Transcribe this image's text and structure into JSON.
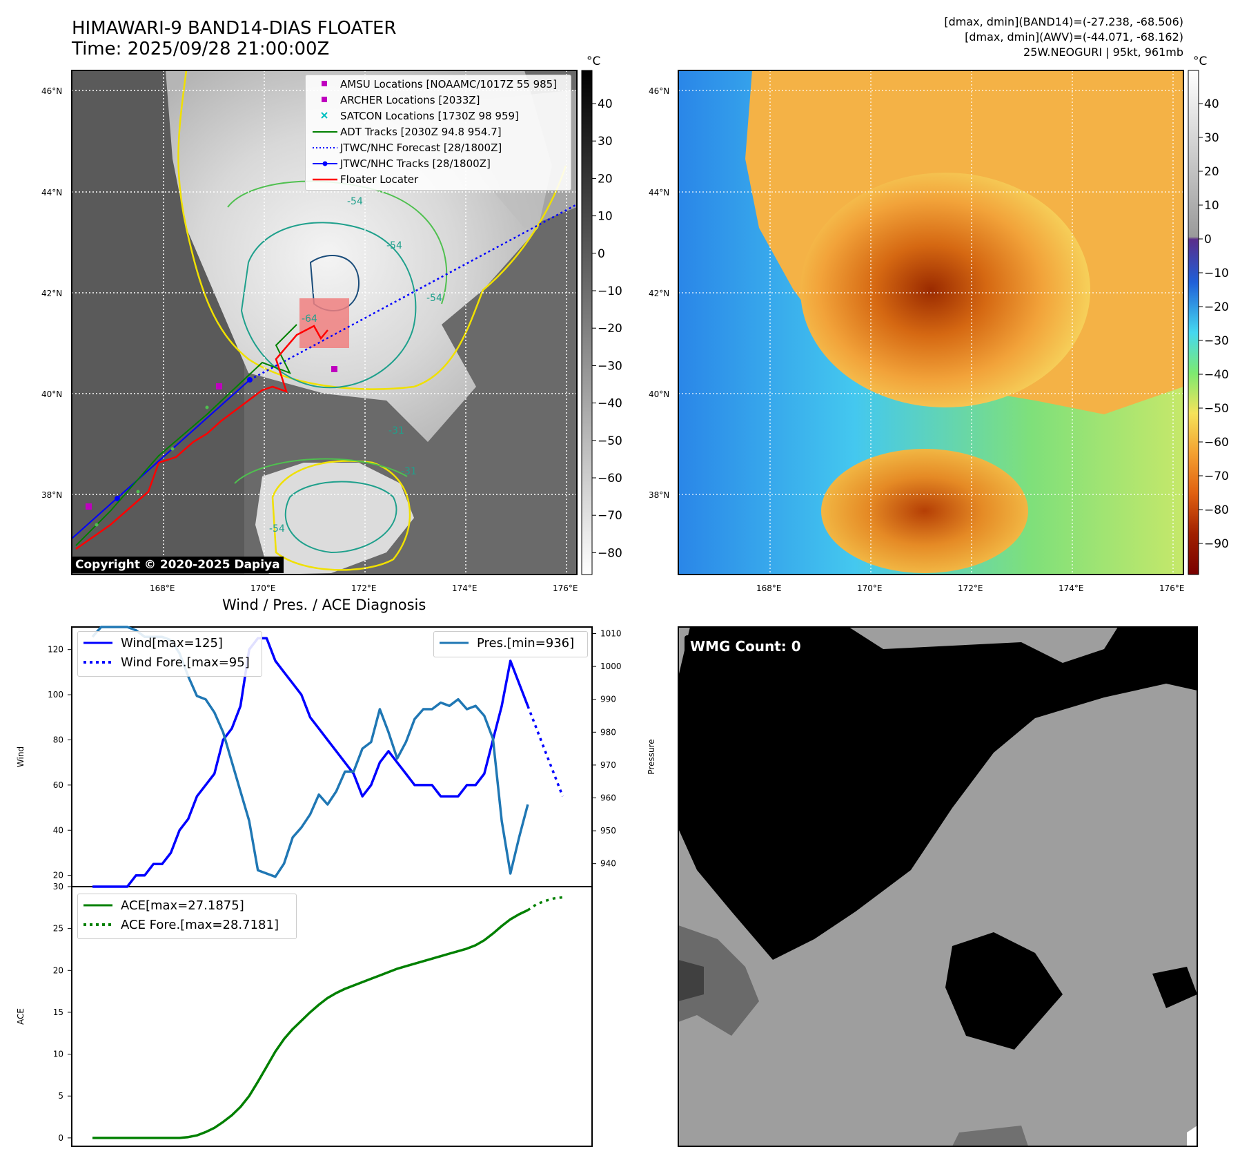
{
  "header": {
    "title_line1": "HIMAWARI-9 BAND14-DIAS FLOATER",
    "title_line2": "Time: 2025/09/28 21:00:00Z",
    "info_line1": "[dmax, dmin](BAND14)=(-27.238, -68.506)",
    "info_line2": "[dmax, dmin](AWV)=(-44.071, -68.162)",
    "info_line3": "25W.NEOGURI | 95kt, 961mb"
  },
  "map_axes": {
    "lat_labels": [
      "46°N",
      "44°N",
      "42°N",
      "40°N",
      "38°N"
    ],
    "lon_labels": [
      "168°E",
      "170°E",
      "172°E",
      "174°E",
      "176°E"
    ],
    "colorbar_unit": "°C",
    "gray_cbar_ticks": [
      "40",
      "30",
      "20",
      "10",
      "0",
      "−10",
      "−20",
      "−30",
      "−40",
      "−50",
      "−60",
      "−70",
      "−80"
    ],
    "color_cbar_ticks": [
      "40",
      "30",
      "20",
      "10",
      "0",
      "−10",
      "−20",
      "−30",
      "−40",
      "−50",
      "−60",
      "−70",
      "−80",
      "−90"
    ],
    "contour_labels": [
      "-54",
      "-54",
      "-54",
      "-64",
      "-31",
      "-31",
      "-54"
    ]
  },
  "legend_map": {
    "items": [
      {
        "label": "AMSU Locations [NOAAMC/1017Z 55 985]",
        "color": "#bf00bf",
        "style": "square"
      },
      {
        "label": "ARCHER Locations [2033Z]",
        "color": "#bf00bf",
        "style": "square"
      },
      {
        "label": "SATCON Locations [1730Z 98 959]",
        "color": "#00bfbf",
        "style": "x"
      },
      {
        "label": "ADT Tracks [2030Z 94.8 954.7]",
        "color": "#008000",
        "style": "line"
      },
      {
        "label": "JTWC/NHC Forecast [28/1800Z]",
        "color": "#0000ff",
        "style": "dotted"
      },
      {
        "label": "JTWC/NHC Tracks [28/1800Z]",
        "color": "#0000ff",
        "style": "line-dot"
      },
      {
        "label": "Floater Locater",
        "color": "#ff0000",
        "style": "line"
      }
    ]
  },
  "copyright": "Copyright © 2020-2025 Dapiya",
  "wmg_label": "WMG Count: 0",
  "chart_data": [
    {
      "type": "line",
      "title": "Wind / Pres. / ACE Diagnosis",
      "ylabel": "Wind",
      "ylabel_right": "Pressure",
      "ylim": [
        15,
        130
      ],
      "ylim_right": [
        933,
        1012
      ],
      "yticks": [
        20,
        40,
        60,
        80,
        100,
        120
      ],
      "yticks_right": [
        940,
        950,
        960,
        970,
        980,
        990,
        1000,
        1010
      ],
      "x": [
        0,
        1,
        2,
        3,
        4,
        5,
        6,
        7,
        8,
        9,
        10,
        11,
        12,
        13,
        14,
        15,
        16,
        17,
        18,
        19,
        20,
        21,
        22,
        23,
        24,
        25,
        26,
        27,
        28,
        29,
        30,
        31,
        32,
        33,
        34,
        35,
        36,
        37,
        38,
        39,
        40,
        41,
        42,
        43,
        44,
        45,
        46,
        47,
        48,
        49,
        50
      ],
      "series": [
        {
          "name": "Wind[max=125]",
          "color": "#0000ff",
          "style": "solid",
          "values": [
            15,
            15,
            15,
            15,
            15,
            20,
            20,
            25,
            25,
            30,
            40,
            45,
            55,
            60,
            65,
            80,
            85,
            95,
            120,
            125,
            125,
            115,
            110,
            105,
            100,
            90,
            85,
            80,
            75,
            70,
            65,
            55,
            60,
            70,
            75,
            70,
            65,
            60,
            60,
            60,
            55,
            55,
            55,
            60,
            60,
            65,
            80,
            95,
            115,
            105,
            95
          ]
        },
        {
          "name": "Wind Fore.[max=95]",
          "color": "#0000ff",
          "style": "dotted",
          "x": [
            50,
            51,
            52,
            53,
            54
          ],
          "values": [
            95,
            85,
            75,
            65,
            55
          ]
        },
        {
          "name": "Pres.[min=936]",
          "color": "#1f77b4",
          "style": "solid",
          "axis": "right",
          "values": [
            1009,
            1012,
            1012,
            1012,
            1012,
            1011,
            1009,
            1009,
            1009,
            1008,
            1004,
            997,
            991,
            990,
            986,
            980,
            971,
            962,
            953,
            938,
            937,
            936,
            940,
            948,
            951,
            955,
            961,
            958,
            962,
            968,
            968,
            975,
            977,
            987,
            980,
            972,
            977,
            984,
            987,
            987,
            989,
            988,
            990,
            987,
            988,
            985,
            978,
            953,
            937,
            948,
            958
          ]
        }
      ]
    },
    {
      "type": "line",
      "ylabel": "ACE",
      "ylim": [
        -1,
        30
      ],
      "yticks": [
        0,
        5,
        10,
        15,
        20,
        25,
        30
      ],
      "x": [
        0,
        1,
        2,
        3,
        4,
        5,
        6,
        7,
        8,
        9,
        10,
        11,
        12,
        13,
        14,
        15,
        16,
        17,
        18,
        19,
        20,
        21,
        22,
        23,
        24,
        25,
        26,
        27,
        28,
        29,
        30,
        31,
        32,
        33,
        34,
        35,
        36,
        37,
        38,
        39,
        40,
        41,
        42,
        43,
        44,
        45,
        46,
        47,
        48,
        49,
        50
      ],
      "series": [
        {
          "name": "ACE[max=27.1875]",
          "color": "#008000",
          "style": "solid",
          "values": [
            0,
            0,
            0,
            0,
            0,
            0,
            0,
            0,
            0,
            0,
            0,
            0.1,
            0.3,
            0.7,
            1.2,
            1.9,
            2.7,
            3.7,
            5.0,
            6.7,
            8.5,
            10.3,
            11.8,
            13.0,
            14.0,
            15.0,
            15.9,
            16.7,
            17.3,
            17.8,
            18.2,
            18.6,
            19.0,
            19.4,
            19.8,
            20.2,
            20.5,
            20.8,
            21.1,
            21.4,
            21.7,
            22.0,
            22.3,
            22.6,
            23.0,
            23.6,
            24.4,
            25.3,
            26.1,
            26.7,
            27.1875
          ]
        },
        {
          "name": "ACE Fore.[max=28.7181]",
          "color": "#008000",
          "style": "dotted",
          "x": [
            50,
            51,
            52,
            53,
            54
          ],
          "values": [
            27.1875,
            27.9,
            28.3,
            28.6,
            28.7181
          ]
        }
      ]
    }
  ]
}
